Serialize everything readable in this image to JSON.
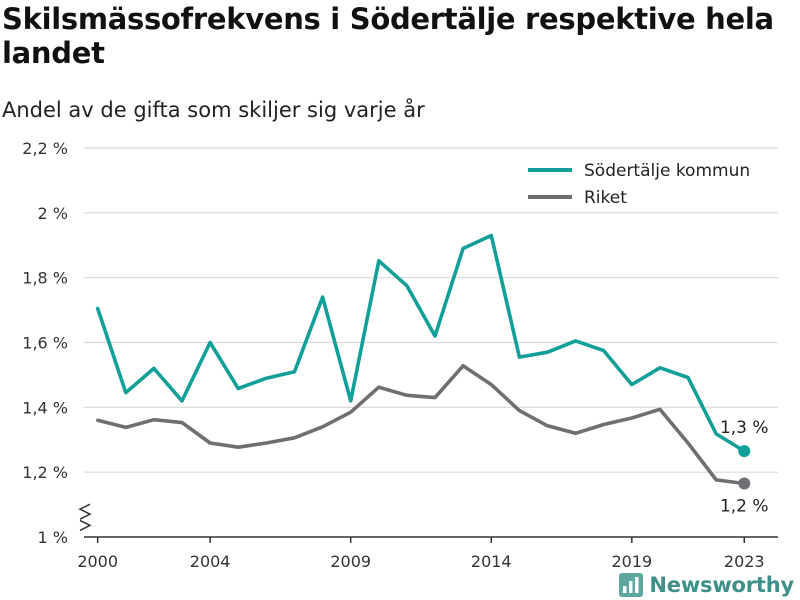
{
  "title": "Skilsmässofrekvens i Södertälje respektive hela landet",
  "subtitle": "Andel av de gifta som skiljer sig varje år",
  "brand": {
    "name": "Newsworthy",
    "icon": "newsworthy-logo-icon"
  },
  "colors": {
    "sodertalje": "#11a099",
    "riket": "#6e6e73",
    "grid": "#d9d9d9",
    "axis": "#333333"
  },
  "chart_data": {
    "type": "line",
    "title": "Skilsmässofrekvens i Södertälje respektive hela landet",
    "subtitle": "Andel av de gifta som skiljer sig varje år",
    "x": [
      2000,
      2001,
      2002,
      2003,
      2004,
      2005,
      2006,
      2007,
      2008,
      2009,
      2010,
      2011,
      2012,
      2013,
      2014,
      2015,
      2016,
      2017,
      2018,
      2019,
      2020,
      2021,
      2022,
      2023
    ],
    "x_ticks": [
      2000,
      2004,
      2009,
      2014,
      2019,
      2023
    ],
    "x_tick_labels": [
      "2000",
      "2004",
      "2009",
      "2014",
      "2019",
      "2023"
    ],
    "y_ticks": [
      1.0,
      1.2,
      1.4,
      1.6,
      1.8,
      2.0,
      2.2
    ],
    "y_tick_labels": [
      "1 %",
      "1,2 %",
      "1,4 %",
      "1,6 %",
      "1,8 %",
      "2 %",
      "2,2 %"
    ],
    "ylim": [
      1.0,
      2.2
    ],
    "xlim": [
      1999.3,
      2024.2
    ],
    "y_axis_break": true,
    "grid": true,
    "legend": {
      "placement": "top-right"
    },
    "series": [
      {
        "name": "Södertälje kommun",
        "color": "#11a099",
        "values": [
          1.705,
          1.445,
          1.52,
          1.42,
          1.6,
          1.458,
          1.49,
          1.51,
          1.74,
          1.42,
          1.852,
          1.775,
          1.62,
          1.89,
          1.93,
          1.555,
          1.57,
          1.605,
          1.575,
          1.47,
          1.522,
          1.492,
          1.318,
          1.265
        ],
        "end_label": "1,3 %"
      },
      {
        "name": "Riket",
        "color": "#6e6e73",
        "values": [
          1.36,
          1.338,
          1.362,
          1.353,
          1.29,
          1.277,
          1.29,
          1.306,
          1.34,
          1.385,
          1.462,
          1.437,
          1.43,
          1.528,
          1.47,
          1.39,
          1.343,
          1.32,
          1.347,
          1.367,
          1.394,
          1.29,
          1.176,
          1.165
        ],
        "end_label": "1,2 %"
      }
    ]
  }
}
